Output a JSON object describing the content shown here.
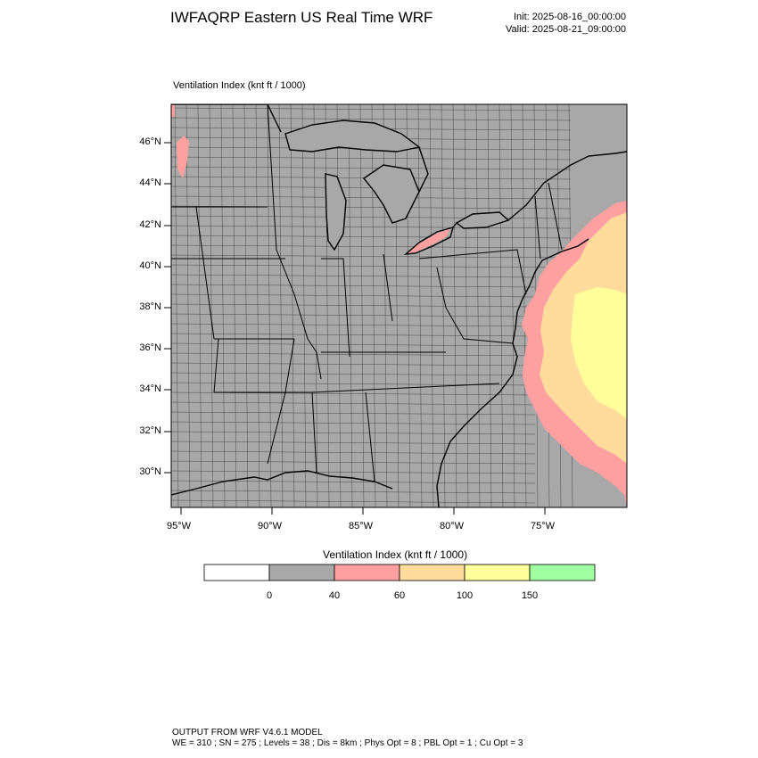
{
  "header": {
    "title": "IWFAQRP Eastern US Real Time WRF",
    "init": "Init: 2025-08-16_00:00:00",
    "valid": "Valid: 2025-08-21_09:00:00"
  },
  "map": {
    "field_label": "Ventilation Index   (knt ft / 1000)",
    "lat_labels": [
      "46°N",
      "44°N",
      "42°N",
      "40°N",
      "38°N",
      "36°N",
      "34°N",
      "32°N",
      "30°N"
    ],
    "lon_labels": [
      "95°W",
      "90°W",
      "85°W",
      "80°W",
      "75°W"
    ],
    "land_color": "#a8a8a8",
    "boundary_color": "#000000"
  },
  "colorbar": {
    "title": "Ventilation Index  (knt ft / 1000)",
    "bins": [
      {
        "color": "#ffffff"
      },
      {
        "color": "#a8a8a8"
      },
      {
        "color": "#ffa0a0"
      },
      {
        "color": "#ffdc9c"
      },
      {
        "color": "#ffff9c"
      },
      {
        "color": "#a0ffa0"
      }
    ],
    "labels": [
      "0",
      "40",
      "60",
      "100",
      "150"
    ]
  },
  "footer": {
    "line1": "OUTPUT FROM WRF V4.6.1 MODEL",
    "line2": "WE = 310 ; SN = 275 ; Levels = 38 ; Dis = 8km ; Phys Opt = 8 ; PBL Opt = 1 ; Cu Opt = 3"
  }
}
